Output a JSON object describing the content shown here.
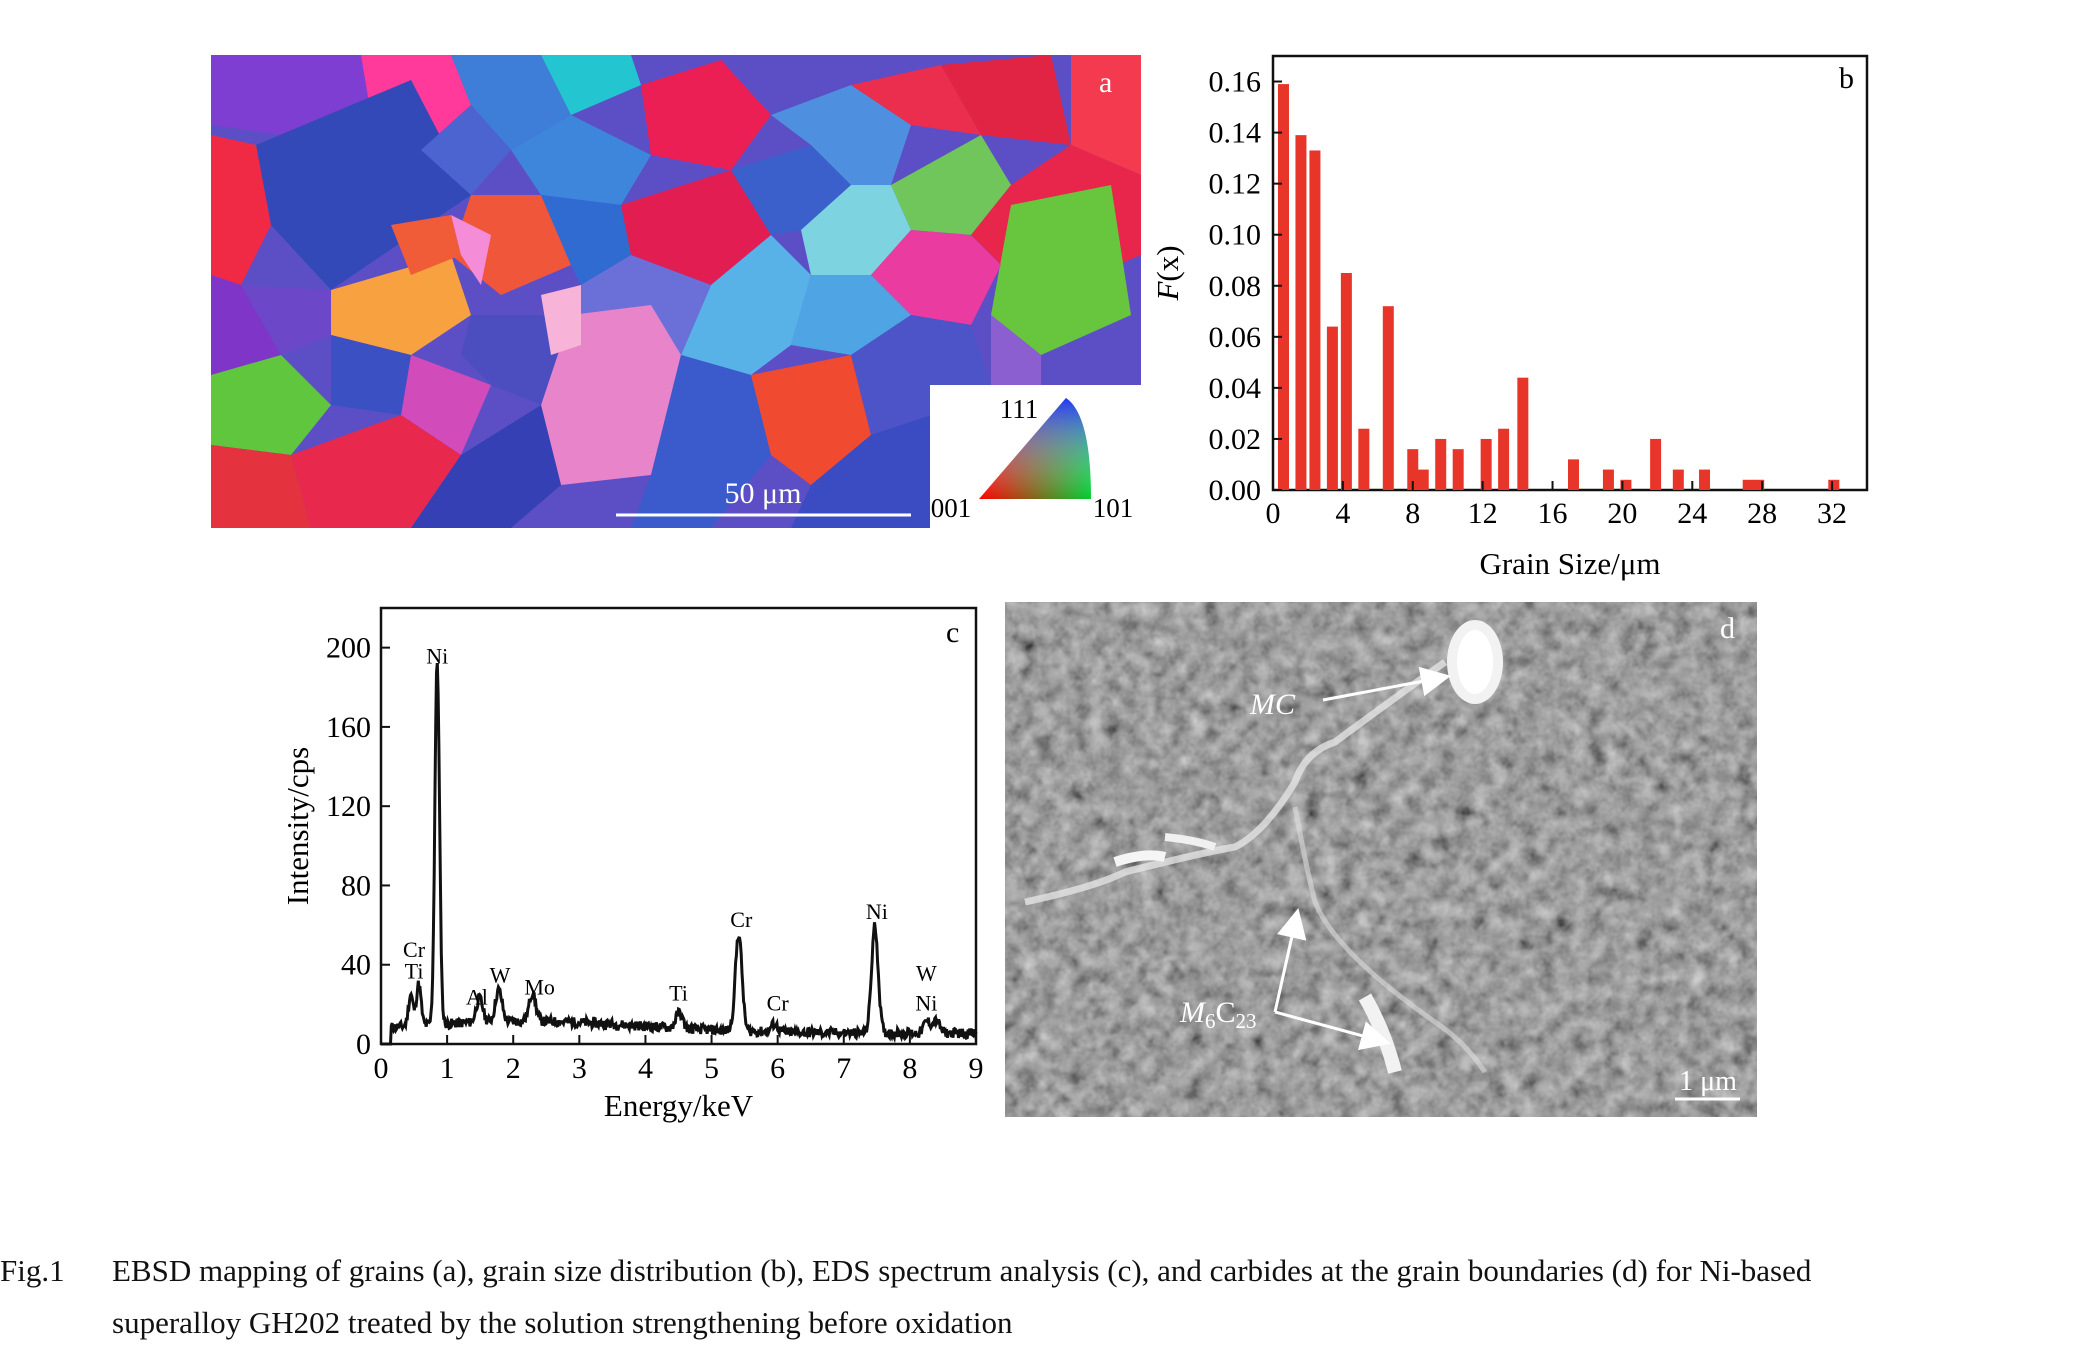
{
  "panel_a": {
    "label": "a",
    "scale_bar": "50 μm",
    "ipf_legend": {
      "top": "111",
      "left": "001",
      "right": "101"
    }
  },
  "panel_d": {
    "label": "d",
    "annotation_mc": "MC",
    "annotation_m6c23_prefix": "M",
    "annotation_m6c23_sub1": "6",
    "annotation_m6c23_mid": "C",
    "annotation_m6c23_sub2": "23",
    "scale_bar": "1 μm"
  },
  "caption": {
    "figure_label": "Fig.1",
    "line1": "EBSD mapping of grains (a), grain size distribution (b), EDS spectrum analysis (c), and carbides at the grain boundaries (d) for Ni-based",
    "line2": "superalloy GH202 treated by the solution strengthening before oxidation"
  },
  "chart_data": [
    {
      "panel": "b",
      "label": "b",
      "type": "bar",
      "xlabel": "Grain Size/μm",
      "ylabel_italic": "F",
      "ylabel_rest": "(x)",
      "xlim": [
        0,
        34
      ],
      "ylim": [
        0,
        0.17
      ],
      "xticks": [
        0,
        4,
        8,
        12,
        16,
        20,
        24,
        28,
        32
      ],
      "yticks": [
        "0.00",
        "0.02",
        "0.04",
        "0.06",
        "0.08",
        "0.10",
        "0.12",
        "0.14",
        "0.16"
      ],
      "color": "#e8352a",
      "x": [
        0.6,
        1.6,
        2.4,
        3.4,
        4.2,
        5.2,
        6.6,
        8.0,
        8.6,
        9.6,
        10.6,
        12.2,
        13.2,
        14.3,
        17.2,
        19.2,
        20.2,
        21.9,
        23.2,
        24.7,
        27.2,
        27.8,
        32.1
      ],
      "values": [
        0.159,
        0.139,
        0.133,
        0.064,
        0.085,
        0.024,
        0.072,
        0.016,
        0.008,
        0.02,
        0.016,
        0.02,
        0.024,
        0.044,
        0.012,
        0.008,
        0.004,
        0.02,
        0.008,
        0.008,
        0.004,
        0.004,
        0.004
      ]
    },
    {
      "panel": "c",
      "label": "c",
      "type": "line",
      "xlabel": "Energy/keV",
      "ylabel": "Intensity/cps",
      "xlim": [
        0,
        9
      ],
      "ylim": [
        0,
        220
      ],
      "xticks": [
        0,
        1,
        2,
        3,
        4,
        5,
        6,
        7,
        8,
        9
      ],
      "yticks": [
        0,
        40,
        80,
        120,
        160,
        200
      ],
      "peaks": [
        {
          "element": "Ni",
          "energy": 0.85,
          "intensity": 187
        },
        {
          "element": "Cr",
          "energy": 0.57,
          "intensity": 25
        },
        {
          "element": "Ti",
          "energy": 0.45,
          "intensity": 20
        },
        {
          "element": "Al",
          "energy": 1.49,
          "intensity": 16
        },
        {
          "element": "W",
          "energy": 1.78,
          "intensity": 20
        },
        {
          "element": "Mo",
          "energy": 2.29,
          "intensity": 18
        },
        {
          "element": "Ti",
          "energy": 4.51,
          "intensity": 12
        },
        {
          "element": "Cr",
          "energy": 5.41,
          "intensity": 53
        },
        {
          "element": "Cr",
          "energy": 5.95,
          "intensity": 8
        },
        {
          "element": "Ni",
          "energy": 7.47,
          "intensity": 58
        },
        {
          "element": "W",
          "energy": 8.4,
          "intensity": 10
        },
        {
          "element": "Ni",
          "energy": 8.26,
          "intensity": 10
        }
      ],
      "peak_labels": {
        "ni_main": "Ni",
        "cr_low": "Cr",
        "ti_low": "Ti",
        "al": "Al",
        "w_low": "W",
        "mo": "Mo",
        "ti_high": "Ti",
        "cr_main": "Cr",
        "cr_small": "Cr",
        "ni_high": "Ni",
        "w_high": "W",
        "ni_small": "Ni"
      }
    }
  ]
}
